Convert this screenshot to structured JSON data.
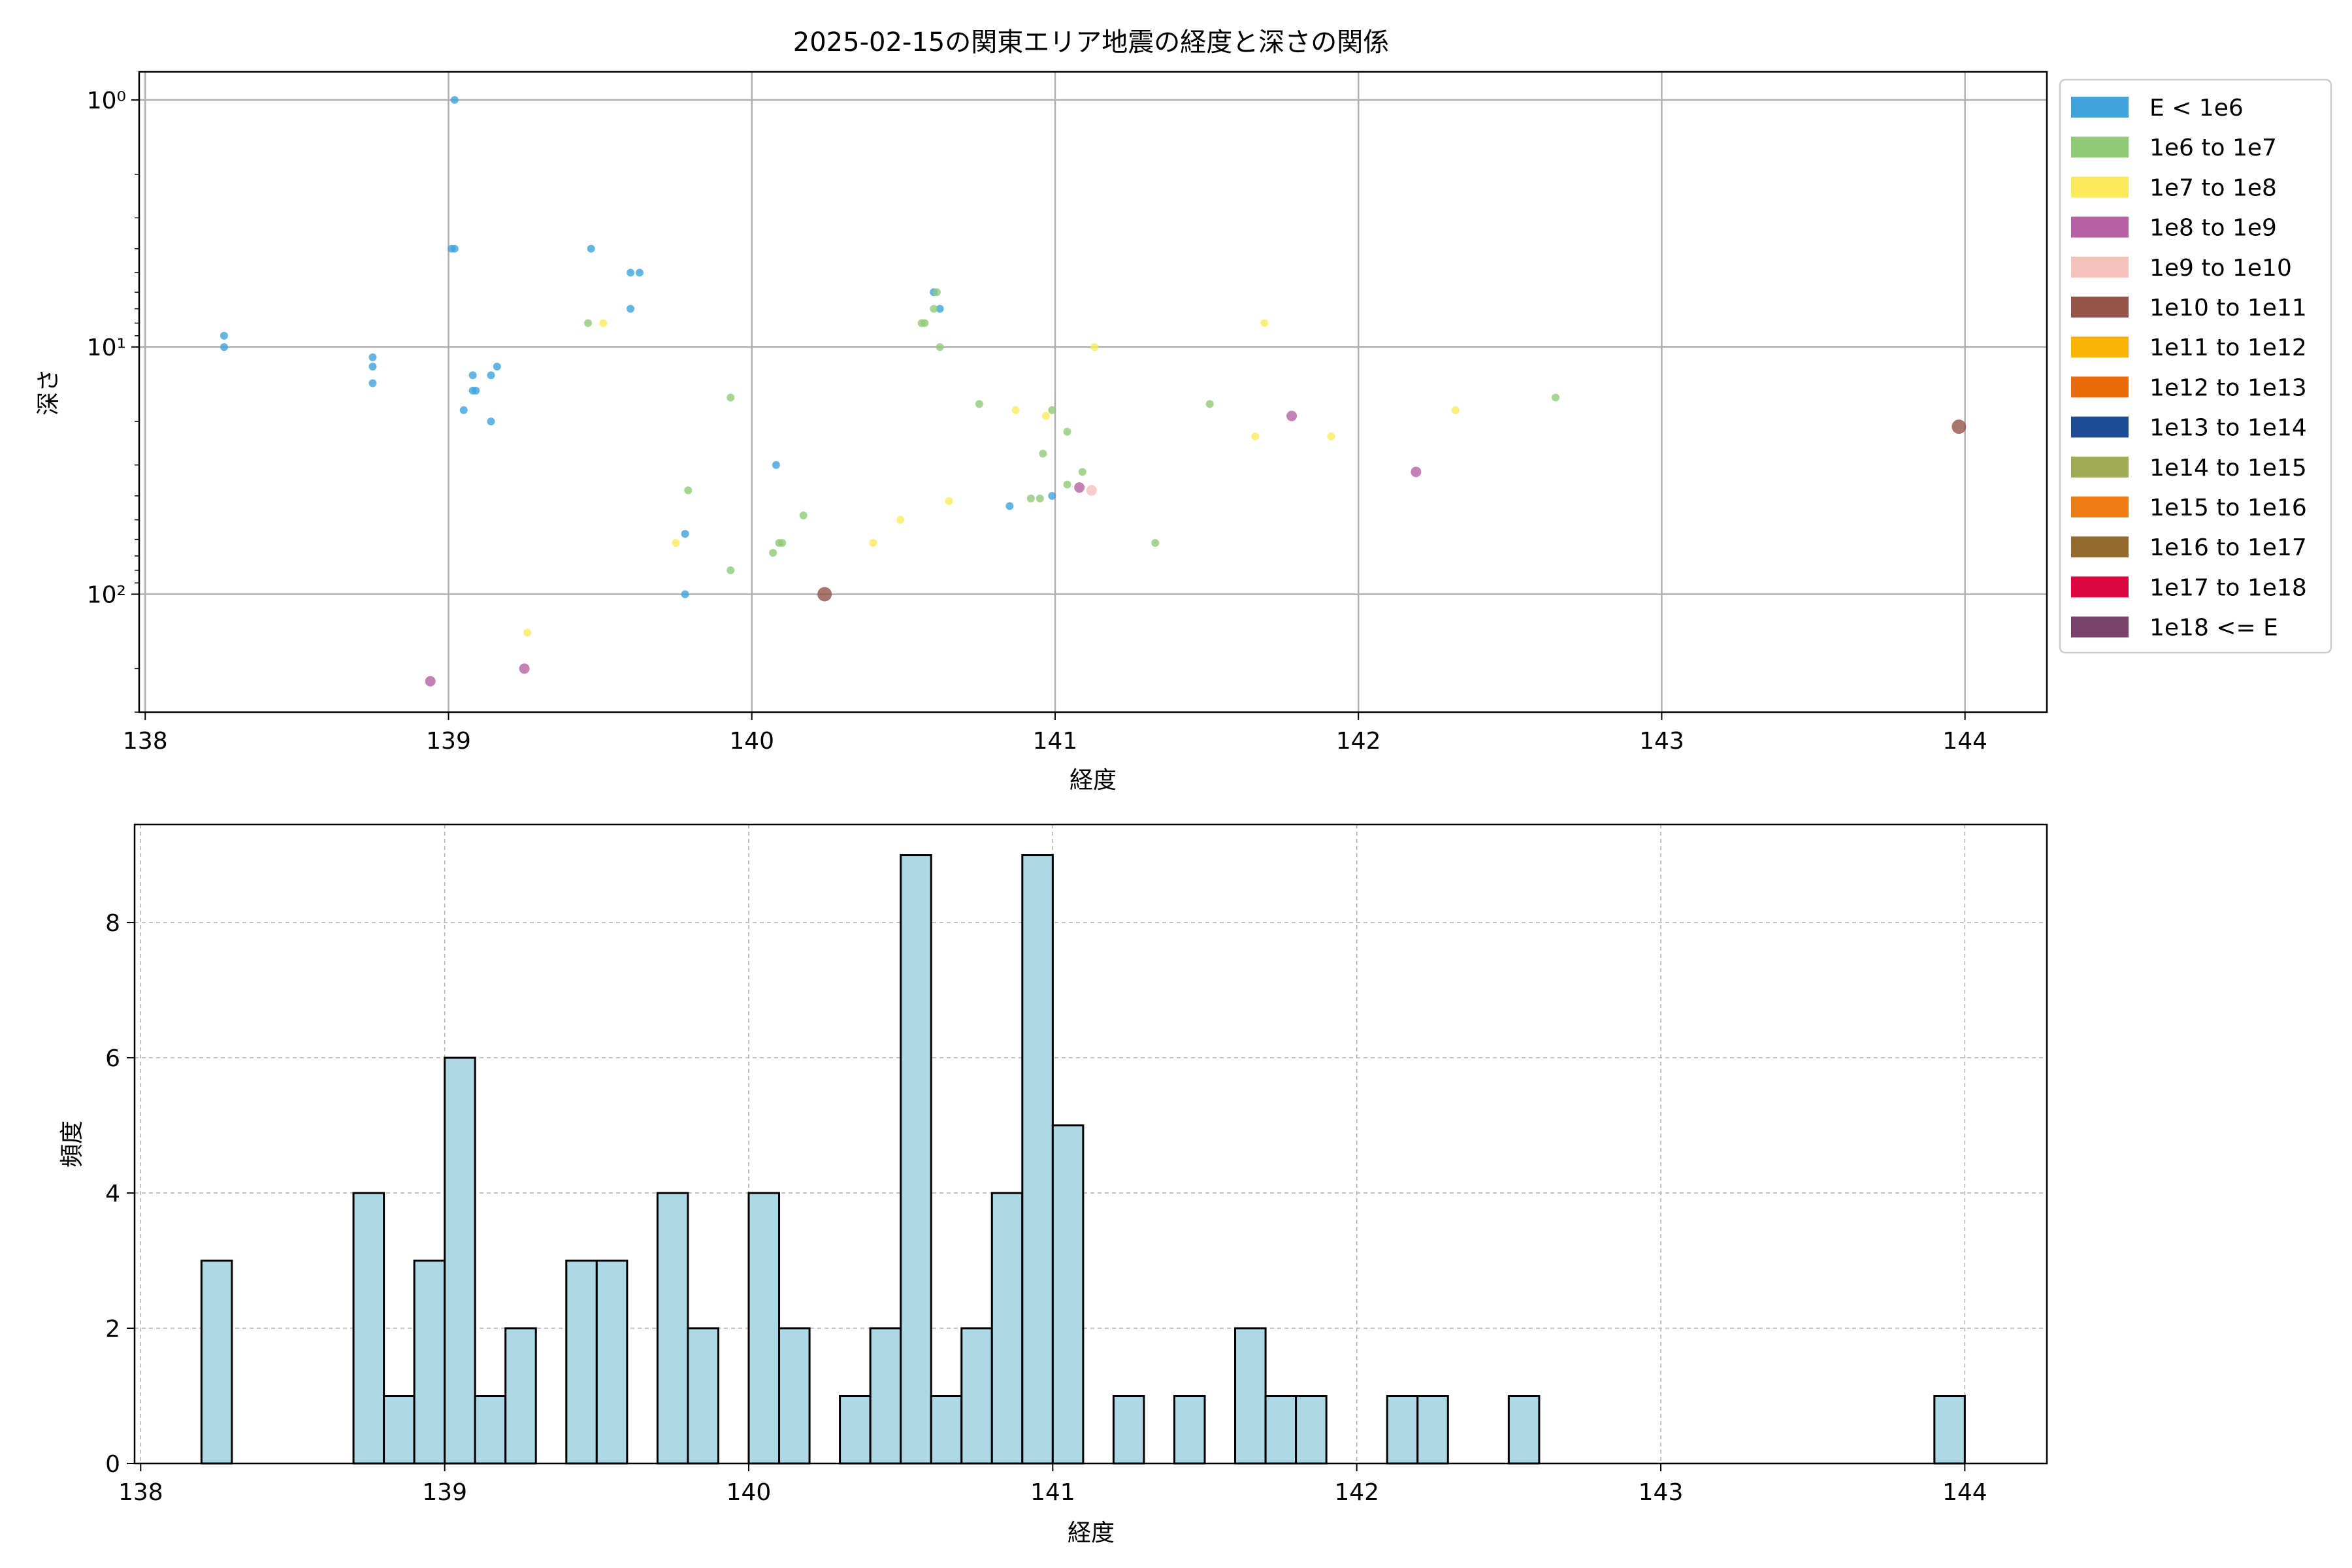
{
  "figure": {
    "title": "2025-02-15の関東エリア地震の経度と深さの関係"
  },
  "chart_data": [
    {
      "type": "scatter",
      "xlabel": "経度",
      "ylabel": "深さ",
      "xlim": [
        137.98,
        144.27
      ],
      "ylim": [
        300,
        0.77
      ],
      "yscale": "log",
      "y_inverted": true,
      "grid": true,
      "xticks": [
        138,
        139,
        140,
        141,
        142,
        143,
        144
      ],
      "xtick_labels": [
        "138",
        "139",
        "140",
        "141",
        "142",
        "143",
        "144"
      ],
      "yticks": [
        1,
        10,
        100
      ],
      "ytick_labels": [
        "10⁰",
        "10¹",
        "10²"
      ],
      "legend": {
        "placement": "outside-top-right",
        "entries": [
          {
            "label": "E < 1e6",
            "color": "#3fa3dc"
          },
          {
            "label": "1e6 to 1e7",
            "color": "#90c978"
          },
          {
            "label": "1e7 to 1e8",
            "color": "#fbeb5b"
          },
          {
            "label": "1e8 to 1e9",
            "color": "#b561a3"
          },
          {
            "label": "1e9 to 1e10",
            "color": "#f4c1bb"
          },
          {
            "label": "1e10 to 1e11",
            "color": "#955349"
          },
          {
            "label": "1e11 to 1e12",
            "color": "#f9b403"
          },
          {
            "label": "1e12 to 1e13",
            "color": "#ec6b09"
          },
          {
            "label": "1e13 to 1e14",
            "color": "#1c4c96"
          },
          {
            "label": "1e14 to 1e15",
            "color": "#9fac54"
          },
          {
            "label": "1e15 to 1e16",
            "color": "#ee7d13"
          },
          {
            "label": "1e16 to 1e17",
            "color": "#946b2d"
          },
          {
            "label": "1e17 to 1e18",
            "color": "#dc0641"
          },
          {
            "label": "1e18 <= E",
            "color": "#7a416b"
          }
        ]
      },
      "series": [
        {
          "class": 0,
          "points": [
            [
              139.02,
              1.0
            ],
            [
              139.01,
              4.0
            ],
            [
              139.02,
              4.0
            ],
            [
              139.47,
              4.0
            ],
            [
              139.6,
              5.0
            ],
            [
              139.63,
              5.0
            ],
            [
              139.6,
              7.0
            ],
            [
              138.26,
              9.0
            ],
            [
              138.26,
              10.0
            ],
            [
              138.75,
              11.0
            ],
            [
              138.75,
              12.0
            ],
            [
              138.75,
              14.0
            ],
            [
              139.08,
              13.0
            ],
            [
              139.08,
              15.0
            ],
            [
              139.09,
              15.0
            ],
            [
              139.14,
              13.0
            ],
            [
              139.16,
              12.0
            ],
            [
              139.05,
              18.0
            ],
            [
              139.14,
              20.0
            ],
            [
              140.08,
              30.0
            ],
            [
              139.78,
              57.0
            ],
            [
              139.78,
              100.0
            ],
            [
              140.85,
              44.0
            ],
            [
              140.99,
              40.0
            ],
            [
              140.6,
              6.0
            ],
            [
              140.62,
              7.0
            ]
          ]
        },
        {
          "class": 1,
          "points": [
            [
              139.46,
              8.0
            ],
            [
              139.93,
              16.0
            ],
            [
              139.79,
              38.0
            ],
            [
              139.93,
              80.0
            ],
            [
              140.07,
              68.0
            ],
            [
              140.09,
              62.0
            ],
            [
              140.1,
              62.0
            ],
            [
              140.17,
              48.0
            ],
            [
              140.56,
              8.0
            ],
            [
              140.57,
              8.0
            ],
            [
              140.6,
              7.0
            ],
            [
              140.61,
              6.0
            ],
            [
              140.62,
              10.0
            ],
            [
              140.75,
              17.0
            ],
            [
              140.96,
              27.0
            ],
            [
              140.99,
              18.0
            ],
            [
              141.04,
              22.0
            ],
            [
              141.04,
              36.0
            ],
            [
              141.09,
              32.0
            ],
            [
              140.92,
              41.0
            ],
            [
              140.95,
              41.0
            ],
            [
              141.33,
              62.0
            ],
            [
              141.51,
              17.0
            ],
            [
              142.65,
              16.0
            ]
          ]
        },
        {
          "class": 2,
          "points": [
            [
              139.51,
              8.0
            ],
            [
              139.75,
              62.0
            ],
            [
              139.26,
              143.0
            ],
            [
              140.4,
              62.0
            ],
            [
              140.49,
              50.0
            ],
            [
              140.65,
              42.0
            ],
            [
              140.87,
              18.0
            ],
            [
              140.97,
              19.0
            ],
            [
              141.13,
              10.0
            ],
            [
              141.69,
              8.0
            ],
            [
              141.66,
              23.0
            ],
            [
              141.91,
              23.0
            ],
            [
              142.32,
              18.0
            ]
          ]
        },
        {
          "class": 3,
          "points": [
            [
              138.94,
              225.0
            ],
            [
              139.25,
              200.0
            ],
            [
              141.08,
              37.0
            ],
            [
              141.78,
              19.0
            ],
            [
              142.19,
              32.0
            ]
          ]
        },
        {
          "class": 4,
          "points": [
            [
              141.12,
              38.0
            ]
          ]
        },
        {
          "class": 5,
          "points": [
            [
              140.24,
              100.0
            ],
            [
              143.98,
              21.0
            ]
          ]
        }
      ]
    },
    {
      "type": "bar",
      "subtype": "histogram",
      "xlabel": "経度",
      "ylabel": "頻度",
      "xlim": [
        137.98,
        144.27
      ],
      "ylim": [
        0,
        9.45
      ],
      "grid": true,
      "bar_color": "#add8e6",
      "bin_width": 0.1,
      "xticks": [
        138,
        139,
        140,
        141,
        142,
        143,
        144
      ],
      "xtick_labels": [
        "138",
        "139",
        "140",
        "141",
        "142",
        "143",
        "144"
      ],
      "yticks": [
        0,
        2,
        4,
        6,
        8
      ],
      "ytick_labels": [
        "0",
        "2",
        "4",
        "6",
        "8"
      ],
      "bins": [
        [
          138.25,
          3
        ],
        [
          138.75,
          4
        ],
        [
          138.85,
          1
        ],
        [
          138.95,
          3
        ],
        [
          139.05,
          6
        ],
        [
          139.15,
          1
        ],
        [
          139.25,
          2
        ],
        [
          139.45,
          3
        ],
        [
          139.55,
          3
        ],
        [
          139.75,
          4
        ],
        [
          139.85,
          2
        ],
        [
          140.05,
          4
        ],
        [
          140.15,
          2
        ],
        [
          140.35,
          1
        ],
        [
          140.45,
          2
        ],
        [
          140.55,
          9
        ],
        [
          140.65,
          1
        ],
        [
          140.75,
          2
        ],
        [
          140.85,
          4
        ],
        [
          140.95,
          9
        ],
        [
          141.05,
          5
        ],
        [
          141.25,
          1
        ],
        [
          141.45,
          1
        ],
        [
          141.65,
          2
        ],
        [
          141.75,
          1
        ],
        [
          141.85,
          1
        ],
        [
          142.15,
          1
        ],
        [
          142.25,
          1
        ],
        [
          142.55,
          1
        ],
        [
          143.95,
          1
        ]
      ]
    }
  ]
}
